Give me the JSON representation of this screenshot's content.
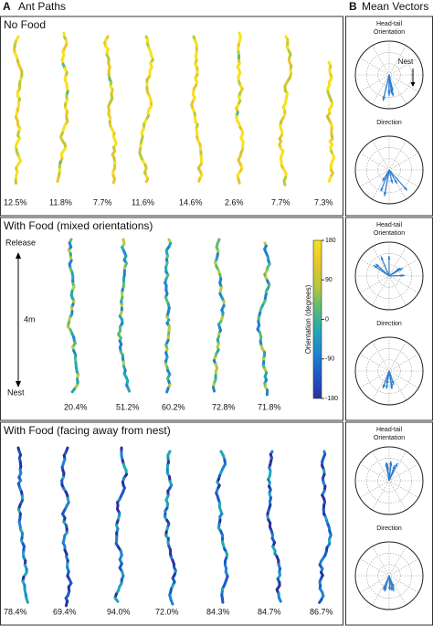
{
  "panel_a": {
    "letter": "A",
    "title": "Ant Paths"
  },
  "panel_b": {
    "letter": "B",
    "title": "Mean Vectors"
  },
  "rows": [
    {
      "title": "No Food",
      "percentages": [
        "12.5%",
        "11.8%",
        "7.7%",
        "11.6%",
        "14.6%",
        "2.6%",
        "7.7%",
        "7.3%"
      ],
      "polar": [
        {
          "title_lines": [
            "Head-tail",
            "Orientation"
          ],
          "annotation": "Nest"
        },
        {
          "title_lines": [
            "Direction"
          ]
        }
      ]
    },
    {
      "title": "With Food (mixed orientations)",
      "percentages": [
        "20.4%",
        "51.2%",
        "60.2%",
        "72.8%",
        "71.8%"
      ],
      "polar": [
        {
          "title_lines": [
            "Head-tail",
            "Orientation"
          ]
        },
        {
          "title_lines": [
            "Direction"
          ]
        }
      ]
    },
    {
      "title": "With Food (facing away from nest)",
      "percentages": [
        "78.4%",
        "69.4%",
        "94.0%",
        "72.0%",
        "84.3%",
        "84.7%",
        "86.7%"
      ],
      "polar": [
        {
          "title_lines": [
            "Head-tail",
            "Orientation"
          ]
        },
        {
          "title_lines": [
            "Direction"
          ]
        }
      ]
    }
  ],
  "scale": {
    "top": "Release",
    "length": "4m",
    "bottom": "Nest"
  },
  "colorbar": {
    "label": "Orientation (degrees)",
    "lim": [
      -180,
      180
    ],
    "ticks": [
      180,
      90,
      0,
      -90,
      -180
    ]
  }
}
